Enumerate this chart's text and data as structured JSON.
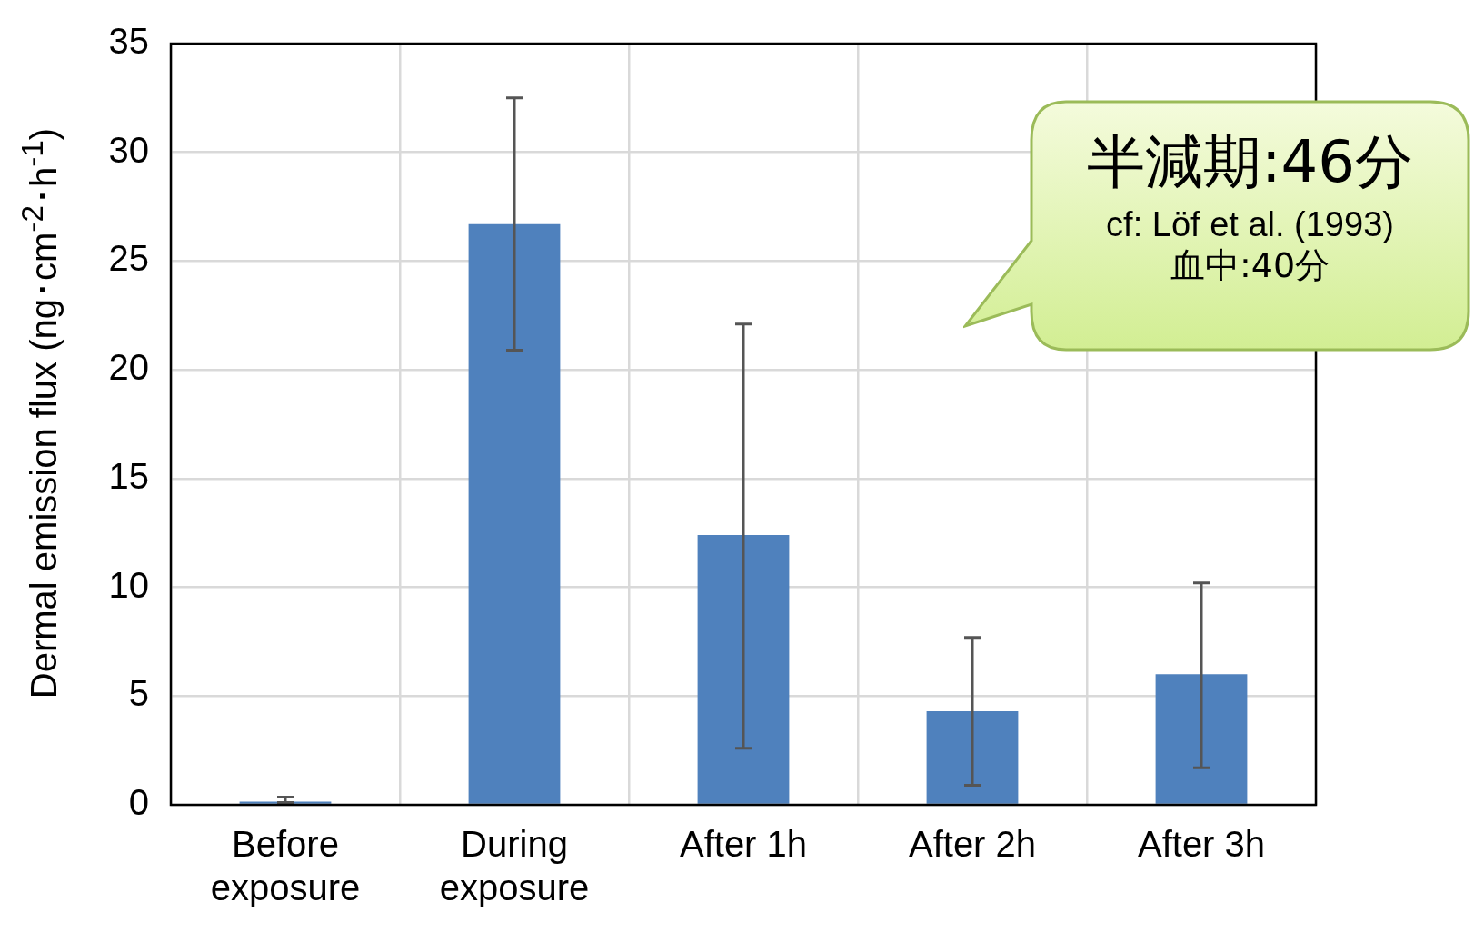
{
  "chart_data": {
    "type": "bar",
    "ylabel": "Dermal emission flux (ng･cm$^{-2}$･h$^{-1}$)",
    "categories": [
      "Before exposure",
      "During exposure",
      "After 1h",
      "After 2h",
      "After 3h"
    ],
    "values": [
      0.15,
      26.7,
      12.4,
      4.3,
      6.0
    ],
    "color": "#4f81bd",
    "errors": [
      [
        0.1,
        0.35
      ],
      [
        20.9,
        32.5
      ],
      [
        2.6,
        22.1
      ],
      [
        0.9,
        7.7
      ],
      [
        1.7,
        10.2
      ]
    ],
    "ylim": [
      0,
      35
    ],
    "yticks": [
      0,
      5,
      10,
      15,
      20,
      25,
      30,
      35
    ],
    "grid": true,
    "legend": false,
    "annotations": [
      "半減期:46分",
      "cf: Löf et al. (1993)",
      "血中:40分"
    ]
  }
}
